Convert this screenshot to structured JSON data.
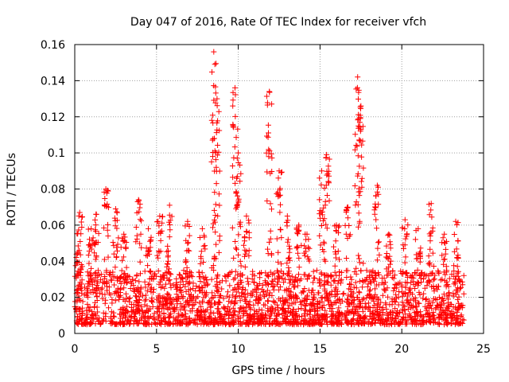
{
  "chart_data": {
    "type": "scatter",
    "title": "Day 047 of 2016, Rate Of TEC Index for receiver vfch",
    "xlabel": "GPS time / hours",
    "ylabel": "ROTI / TECUs",
    "xlim": [
      0,
      25
    ],
    "ylim": [
      0,
      0.16
    ],
    "xticks": [
      0,
      5,
      10,
      15,
      20,
      25
    ],
    "yticks": [
      0,
      0.02,
      0.04,
      0.06,
      0.08,
      0.1,
      0.12,
      0.14,
      0.16
    ],
    "xtick_labels": [
      "0",
      "5",
      "10",
      "15",
      "20",
      "25"
    ],
    "ytick_labels": [
      "0",
      "0.02",
      "0.04",
      "0.06",
      "0.08",
      "0.1",
      "0.12",
      "0.14",
      "0.16"
    ],
    "grid": true,
    "marker": "+",
    "series": [
      {
        "name": "vfch",
        "color": "#ff0000",
        "x_range": [
          0,
          23.8
        ],
        "typical_range": [
          0.005,
          0.035
        ],
        "peaks": [
          {
            "x": 0.2,
            "y": 0.045
          },
          {
            "x": 0.3,
            "y": 0.067
          },
          {
            "x": 1.0,
            "y": 0.058
          },
          {
            "x": 1.3,
            "y": 0.066
          },
          {
            "x": 1.9,
            "y": 0.08
          },
          {
            "x": 2.5,
            "y": 0.069
          },
          {
            "x": 3.0,
            "y": 0.055
          },
          {
            "x": 3.9,
            "y": 0.074
          },
          {
            "x": 4.5,
            "y": 0.058
          },
          {
            "x": 5.2,
            "y": 0.065
          },
          {
            "x": 5.8,
            "y": 0.071
          },
          {
            "x": 6.9,
            "y": 0.062
          },
          {
            "x": 7.8,
            "y": 0.058
          },
          {
            "x": 8.5,
            "y": 0.156
          },
          {
            "x": 8.7,
            "y": 0.13
          },
          {
            "x": 9.8,
            "y": 0.136
          },
          {
            "x": 10.0,
            "y": 0.1
          },
          {
            "x": 10.5,
            "y": 0.065
          },
          {
            "x": 11.9,
            "y": 0.134
          },
          {
            "x": 12.5,
            "y": 0.09
          },
          {
            "x": 13.0,
            "y": 0.065
          },
          {
            "x": 13.7,
            "y": 0.06
          },
          {
            "x": 14.2,
            "y": 0.055
          },
          {
            "x": 15.1,
            "y": 0.09
          },
          {
            "x": 15.4,
            "y": 0.099
          },
          {
            "x": 16.0,
            "y": 0.06
          },
          {
            "x": 16.7,
            "y": 0.07
          },
          {
            "x": 17.3,
            "y": 0.142
          },
          {
            "x": 17.5,
            "y": 0.126
          },
          {
            "x": 18.5,
            "y": 0.082
          },
          {
            "x": 19.2,
            "y": 0.055
          },
          {
            "x": 20.2,
            "y": 0.063
          },
          {
            "x": 21.0,
            "y": 0.058
          },
          {
            "x": 21.8,
            "y": 0.072
          },
          {
            "x": 22.6,
            "y": 0.055
          },
          {
            "x": 23.3,
            "y": 0.062
          }
        ]
      }
    ]
  }
}
